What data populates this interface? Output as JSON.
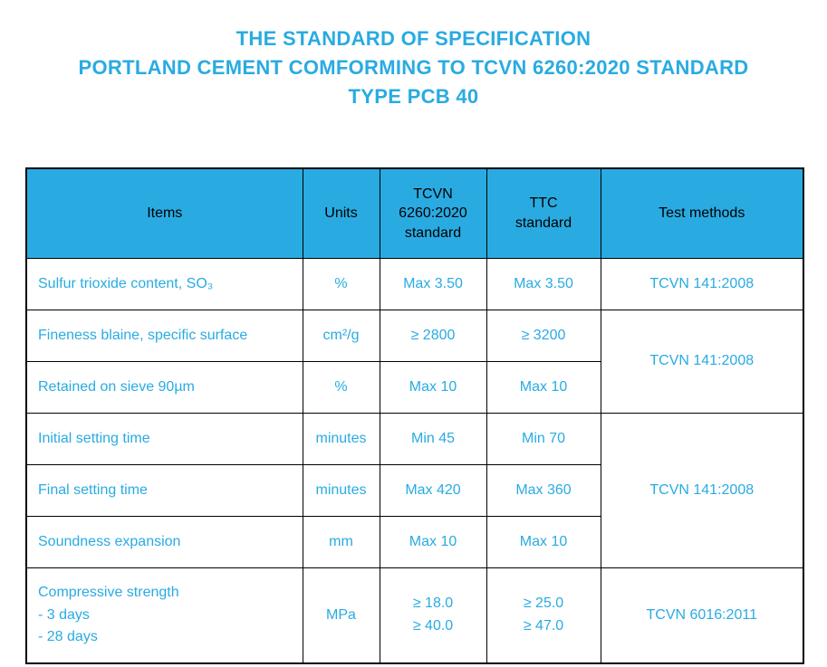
{
  "title": {
    "line1": "THE STANDARD OF SPECIFICATION",
    "line2": "PORTLAND CEMENT COMFORMING TO TCVN 6260:2020 STANDARD",
    "line3": "TYPE PCB 40"
  },
  "colors": {
    "accent": "#29ABE2",
    "header_bg": "#29ABE2",
    "body_text": "#29ABE2",
    "border": "#000000"
  },
  "table": {
    "headers": {
      "items": "Items",
      "units": "Units",
      "tcvn": "TCVN\n6260:2020\nstandard",
      "ttc": "TTC\nstandard",
      "methods": "Test methods"
    },
    "rows": [
      {
        "item": "Sulfur trioxide content, SO₃",
        "units": "%",
        "tcvn": "Max 3.50",
        "ttc": "Max 3.50",
        "method": "TCVN 141:2008"
      },
      {
        "item": "Fineness blaine, specific surface",
        "units": "cm²/g",
        "tcvn": "≥ 2800",
        "ttc": "≥ 3200",
        "method": "TCVN 141:2008"
      },
      {
        "item": "Retained on sieve 90µm",
        "units": "%",
        "tcvn": "Max 10",
        "ttc": "Max 10"
      },
      {
        "item": "Initial setting time",
        "units": "minutes",
        "tcvn": "Min 45",
        "ttc": "Min 70",
        "method": "TCVN 141:2008"
      },
      {
        "item": "Final setting time",
        "units": "minutes",
        "tcvn": "Max 420",
        "ttc": "Max 360"
      },
      {
        "item": "Soundness expansion",
        "units": "mm",
        "tcvn": "Max 10",
        "ttc": "Max 10"
      },
      {
        "item": "Compressive strength\n-  3 days\n-  28 days",
        "units": "MPa",
        "tcvn": "≥ 18.0\n≥ 40.0",
        "ttc": "≥ 25.0\n≥ 47.0",
        "method": "TCVN 6016:2011"
      }
    ]
  }
}
